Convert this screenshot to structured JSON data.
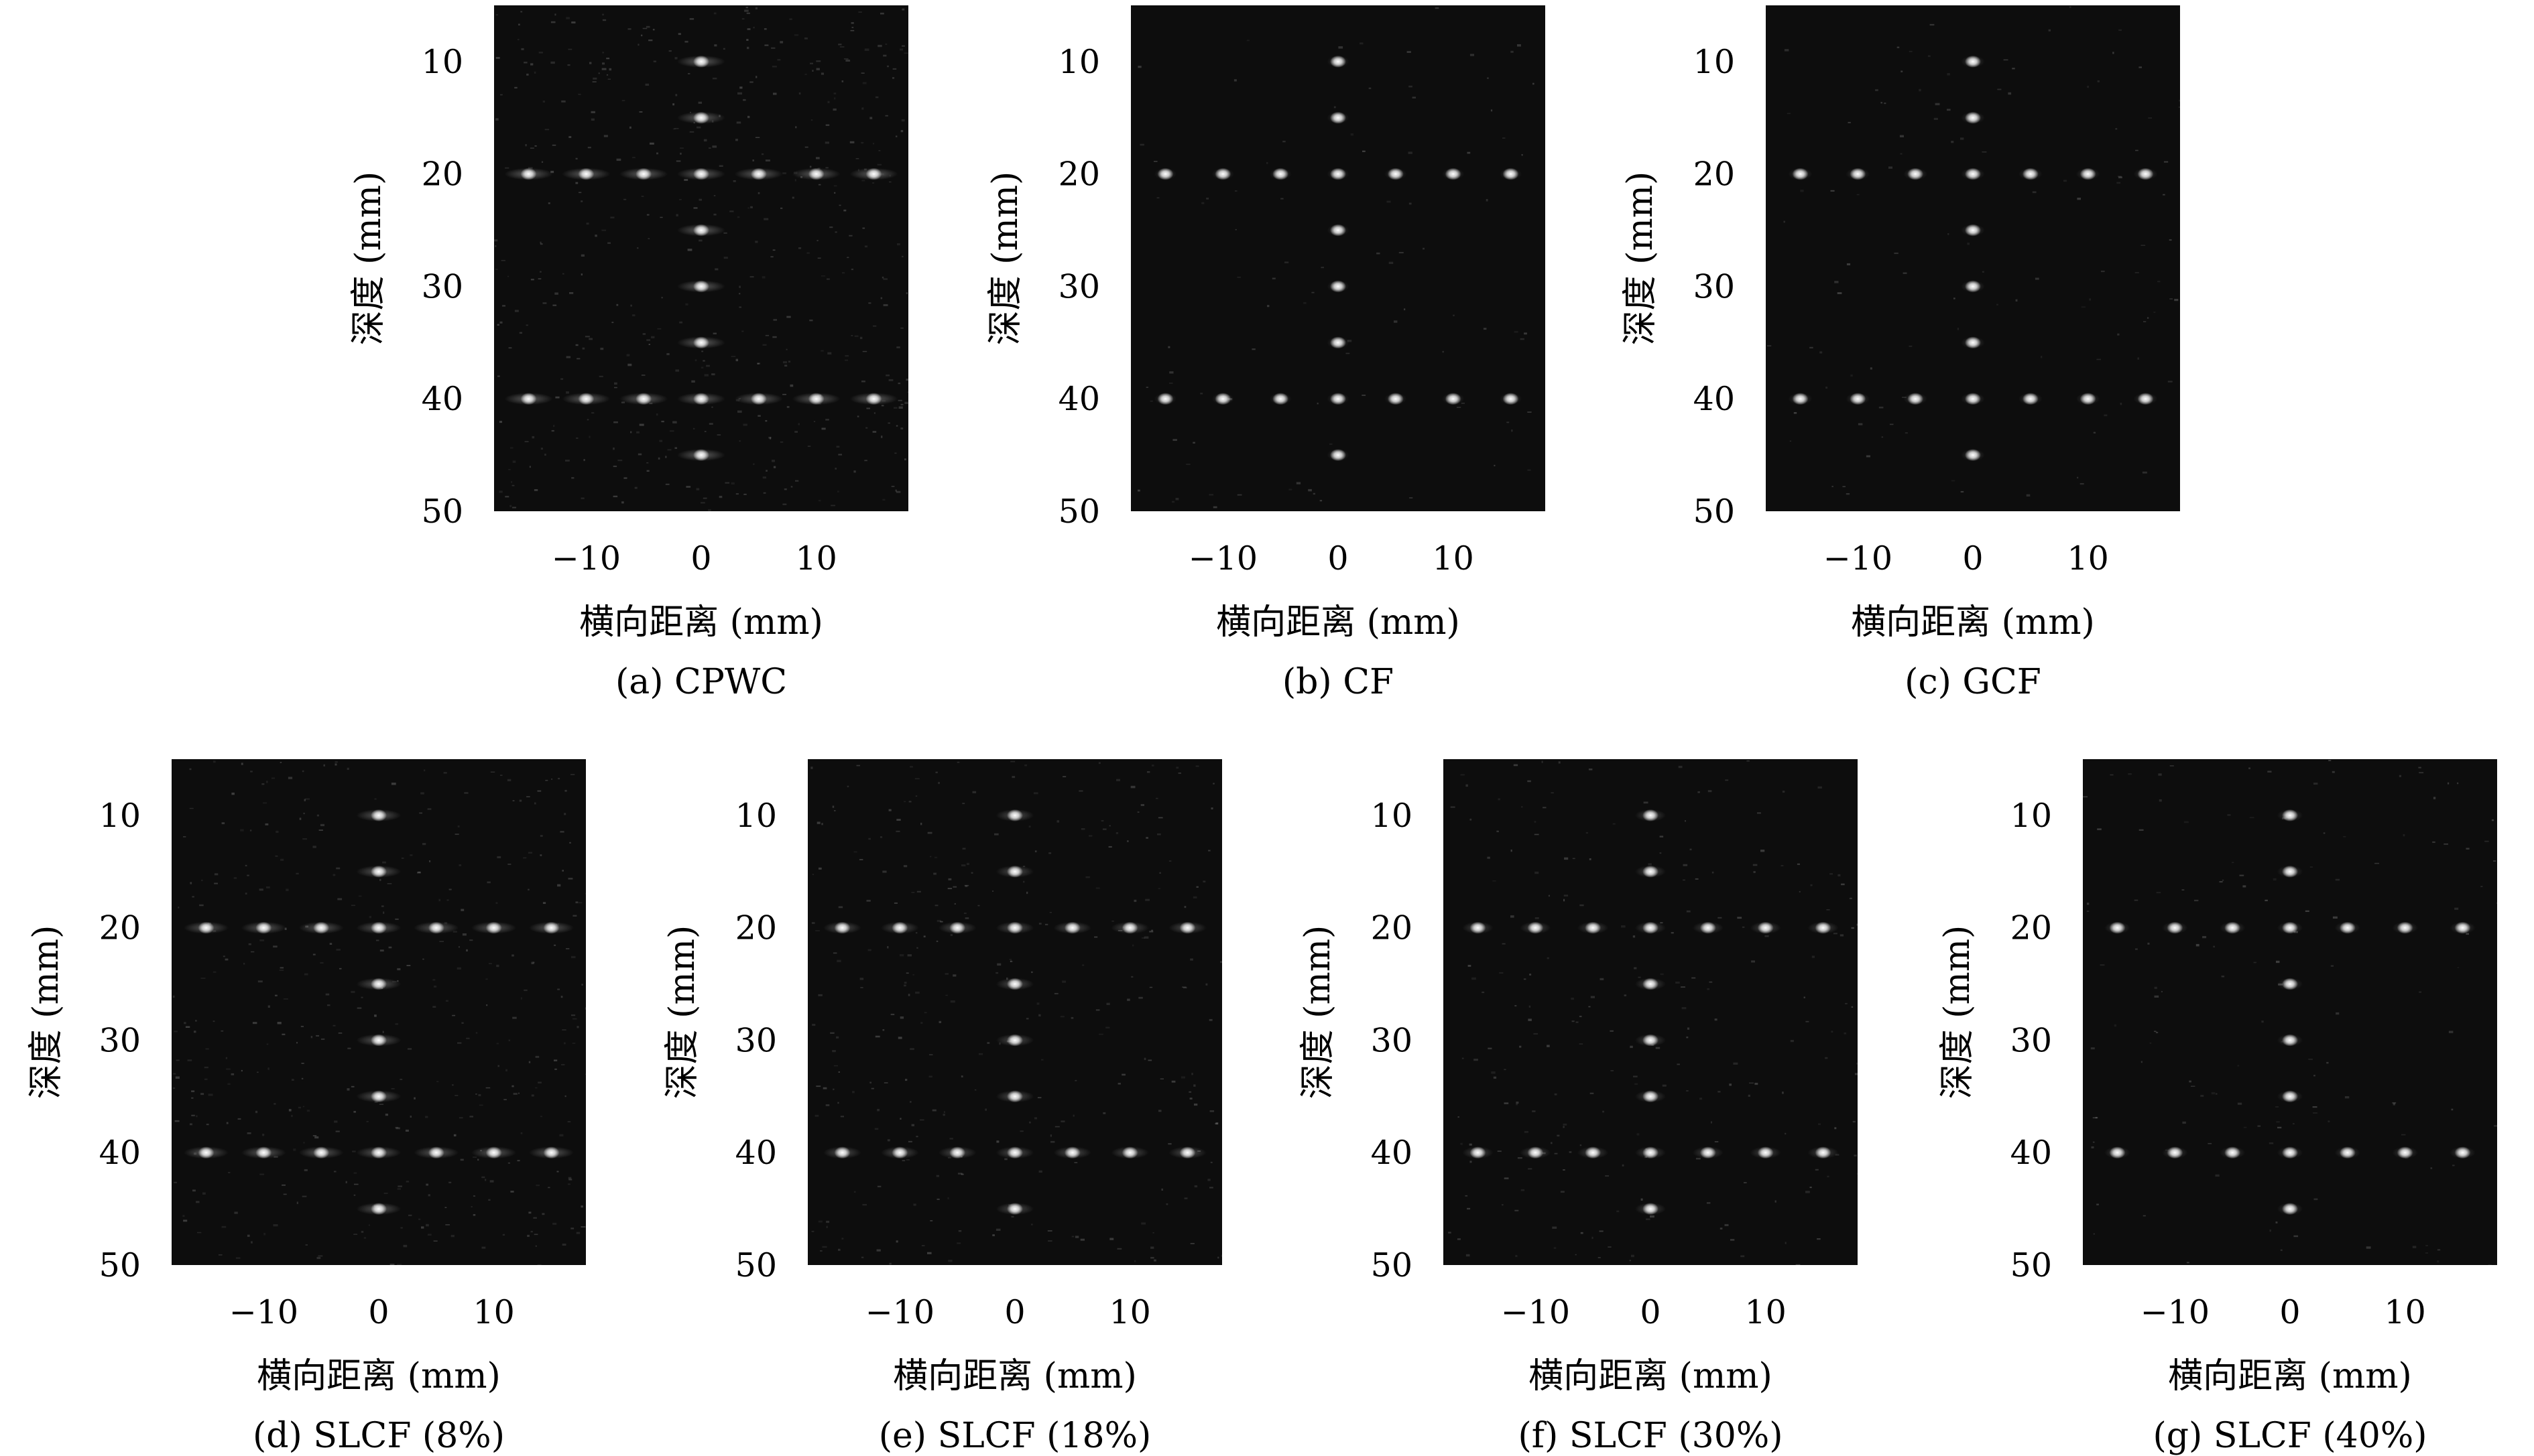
{
  "panels": [
    {
      "caption": "(a) CPWC",
      "xlabel": "横向距离 (mm)",
      "ylabel": "深度 (mm)",
      "noise": 0.55,
      "lobe": 1.0
    },
    {
      "caption": "(b) CF",
      "xlabel": "横向距离 (mm)",
      "ylabel": "深度 (mm)",
      "noise": 0.1,
      "lobe": 0.25
    },
    {
      "caption": "(c) GCF",
      "xlabel": "横向距离 (mm)",
      "ylabel": "深度 (mm)",
      "noise": 0.12,
      "lobe": 0.3
    },
    {
      "caption": "(d) SLCF (8%)",
      "xlabel": "横向距离 (mm)",
      "ylabel": "深度 (mm)",
      "noise": 0.45,
      "lobe": 0.9
    },
    {
      "caption": "(e) SLCF (18%)",
      "xlabel": "横向距离 (mm)",
      "ylabel": "深度 (mm)",
      "noise": 0.35,
      "lobe": 0.7
    },
    {
      "caption": "(f) SLCF (30%)",
      "xlabel": "横向距离 (mm)",
      "ylabel": "深度 (mm)",
      "noise": 0.25,
      "lobe": 0.5
    },
    {
      "caption": "(g) SLCF (40%)",
      "xlabel": "横向距离 (mm)",
      "ylabel": "深度 (mm)",
      "noise": 0.15,
      "lobe": 0.35
    }
  ],
  "axes": {
    "x_ticks": [
      -10,
      0,
      10
    ],
    "y_ticks": [
      10,
      20,
      30,
      40,
      50
    ],
    "x_range": [
      -18,
      18
    ],
    "y_range": [
      5,
      50
    ]
  },
  "scatterers": {
    "central_column_x": 0,
    "central_column_depths": [
      10,
      15,
      20,
      25,
      30,
      35,
      40,
      45
    ],
    "row_depths": [
      20,
      40
    ],
    "row_x": [
      -15,
      -10,
      -5,
      0,
      5,
      10,
      15
    ]
  },
  "colors": {
    "background": "#0d0d0d",
    "point": "#ffffff"
  }
}
